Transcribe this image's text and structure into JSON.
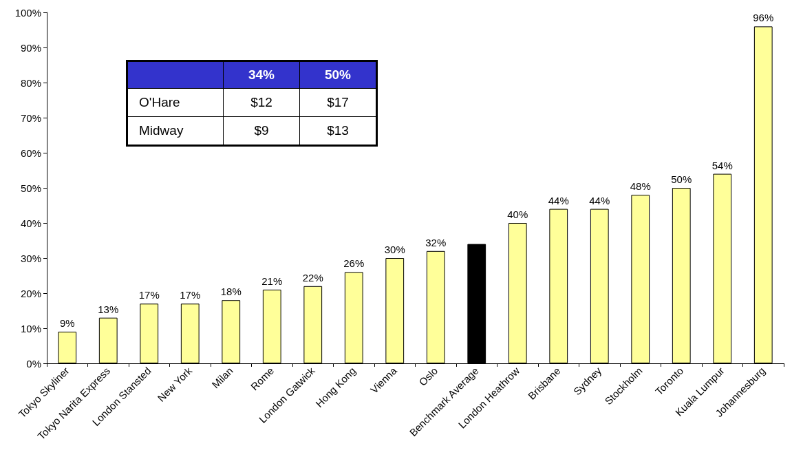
{
  "chart_data": {
    "type": "bar",
    "categories": [
      "Tokyo Skyliner",
      "Tokyo Narita Express",
      "London Stansted",
      "New York",
      "Milan",
      "Rome",
      "London Gatwick",
      "Hong Kong",
      "Vienna",
      "Oslo",
      "Benchmark Average",
      "London Heathrow",
      "Brisbane",
      "Sydney",
      "Stockholm",
      "Toronto",
      "Kuala Lumpur",
      "Johannesburg"
    ],
    "values": [
      9,
      13,
      17,
      17,
      18,
      21,
      22,
      26,
      30,
      32,
      34,
      40,
      44,
      44,
      48,
      50,
      54,
      96
    ],
    "colors": [
      "#ffff99",
      "#ffff99",
      "#ffff99",
      "#ffff99",
      "#ffff99",
      "#ffff99",
      "#ffff99",
      "#ffff99",
      "#ffff99",
      "#ffff99",
      "#000000",
      "#ffff99",
      "#ffff99",
      "#ffff99",
      "#ffff99",
      "#ffff99",
      "#ffff99",
      "#ffff99"
    ],
    "value_labels": [
      "9%",
      "13%",
      "17%",
      "17%",
      "18%",
      "21%",
      "22%",
      "26%",
      "30%",
      "32%",
      null,
      "40%",
      "44%",
      "44%",
      "48%",
      "50%",
      "54%",
      "96%"
    ],
    "ylim": [
      0,
      100
    ],
    "yticks": [
      {
        "value": 0,
        "label": "0%"
      },
      {
        "value": 10,
        "label": "10%"
      },
      {
        "value": 20,
        "label": "20%"
      },
      {
        "value": 30,
        "label": "30%"
      },
      {
        "value": 40,
        "label": "40%"
      },
      {
        "value": 50,
        "label": "50%"
      },
      {
        "value": 60,
        "label": "60%"
      },
      {
        "value": 70,
        "label": "70%"
      },
      {
        "value": 80,
        "label": "80%"
      },
      {
        "value": 90,
        "label": "90%"
      },
      {
        "value": 100,
        "label": "100%"
      }
    ],
    "grid": false,
    "annotations": [
      "34%",
      "50%",
      "O'Hare",
      "$12",
      "$17",
      "Midway",
      "$9",
      "$13"
    ]
  }
}
